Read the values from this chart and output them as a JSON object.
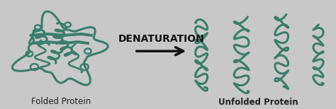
{
  "background_color": "#c8c8c8",
  "protein_color": "#3a7d6e",
  "protein_linewidth": 2.2,
  "arrow_color": "#111111",
  "arrow_label": "DENATURATION",
  "arrow_label_fontsize": 10,
  "arrow_label_fontweight": "bold",
  "label_folded": "Folded Protein",
  "label_unfolded": "Unfolded Protein",
  "label_fontsize": 8.5,
  "fig_width": 4.74,
  "fig_height": 1.54
}
